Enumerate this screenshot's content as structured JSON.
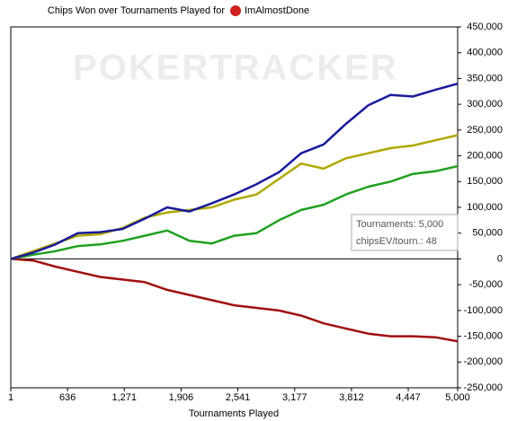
{
  "chart_data": {
    "type": "line",
    "title": "Chips Won over Tournaments Played for",
    "player": "ImAlmostDone",
    "watermark": "POKERTRACKER",
    "x_label": "Tournaments Played",
    "annotations": [
      "Tournaments: 5,000",
      "chipsEV/tourn.: 48"
    ],
    "x": [
      1,
      250,
      500,
      750,
      1000,
      1250,
      1500,
      1750,
      2000,
      2250,
      2500,
      2750,
      3000,
      3250,
      3500,
      3750,
      4000,
      4250,
      4500,
      4750,
      5000
    ],
    "series": [
      {
        "color": "#1a1a9c",
        "values": [
          0,
          12000,
          28000,
          50000,
          52000,
          58000,
          78000,
          100000,
          92000,
          108000,
          125000,
          145000,
          168000,
          205000,
          222000,
          262000,
          298000,
          318000,
          315000,
          328000,
          340000
        ]
      },
      {
        "color": "#b0a800",
        "values": [
          0,
          15000,
          30000,
          45000,
          48000,
          60000,
          80000,
          90000,
          95000,
          100000,
          115000,
          125000,
          155000,
          185000,
          175000,
          195000,
          205000,
          215000,
          220000,
          230000,
          240000
        ]
      },
      {
        "color": "#20a020",
        "values": [
          0,
          8000,
          15000,
          25000,
          28000,
          35000,
          45000,
          55000,
          35000,
          30000,
          45000,
          50000,
          75000,
          95000,
          105000,
          125000,
          140000,
          150000,
          165000,
          170000,
          180000
        ]
      },
      {
        "color": "#a01010",
        "values": [
          0,
          -3000,
          -15000,
          -25000,
          -35000,
          -40000,
          -45000,
          -60000,
          -70000,
          -80000,
          -90000,
          -95000,
          -100000,
          -110000,
          -125000,
          -135000,
          -145000,
          -150000,
          -150000,
          -152000,
          -160000
        ]
      }
    ],
    "xlim": [
      1,
      5000
    ],
    "xticks": [
      1,
      636,
      {
        "value": 1271,
        "label": "1,271"
      },
      {
        "value": 1906,
        "label": "1,906"
      },
      {
        "value": 2541,
        "label": "2,541"
      },
      {
        "value": 3177,
        "label": "3,177"
      },
      {
        "value": 3812,
        "label": "3,812"
      },
      {
        "value": 4447,
        "label": "4,447"
      },
      {
        "value": 5000,
        "label": "5,000"
      }
    ],
    "ylim": [
      -250000,
      450000
    ],
    "yticks": [
      {
        "value": 450000,
        "label": "450,000"
      },
      {
        "value": 400000,
        "label": "400,000"
      },
      {
        "value": 350000,
        "label": "350,000"
      },
      {
        "value": 300000,
        "label": "300,000"
      },
      {
        "value": 250000,
        "label": "250,000"
      },
      {
        "value": 200000,
        "label": "200,000"
      },
      {
        "value": 150000,
        "label": "150,000"
      },
      {
        "value": 100000,
        "label": "100,000"
      },
      {
        "value": 50000,
        "label": "50,000"
      },
      0,
      {
        "value": -50000,
        "label": "-50,000"
      },
      {
        "value": -100000,
        "label": "-100,000"
      },
      {
        "value": -150000,
        "label": "-150,000"
      },
      {
        "value": -200000,
        "label": "-200,000"
      },
      {
        "value": -250000,
        "label": "-250,000"
      }
    ]
  }
}
